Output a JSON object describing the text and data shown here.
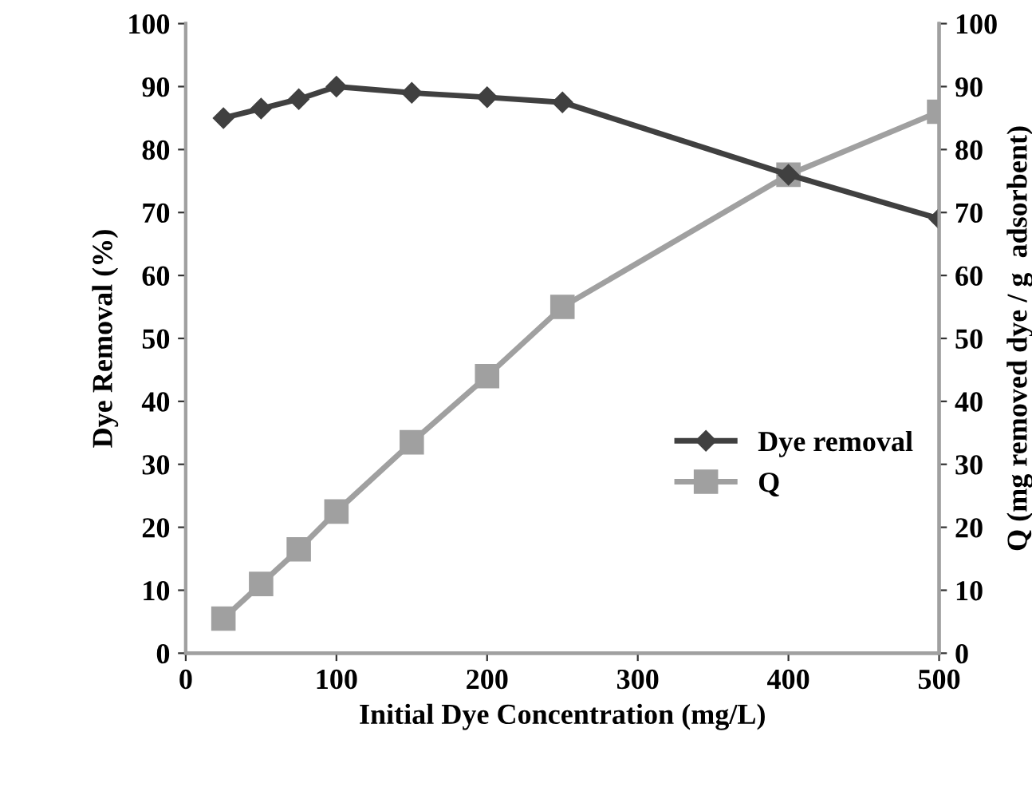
{
  "chart_data": {
    "type": "line",
    "xlabel": "Initial Dye Concentration (mg/L)",
    "ylabel": "Dye Removal (%)",
    "y2label": "Q (mg removed dye / g  adsorbent)",
    "x": [
      25,
      50,
      75,
      100,
      150,
      200,
      250,
      400,
      500
    ],
    "series": [
      {
        "name": "Dye removal",
        "color": "#404040",
        "marker": "diamond",
        "values": [
          85,
          86.5,
          88,
          90,
          89,
          88.3,
          87.5,
          76,
          69
        ]
      },
      {
        "name": "Q",
        "color": "#a0a0a0",
        "marker": "square",
        "axis": "y2",
        "values": [
          5.5,
          11,
          16.5,
          22.5,
          33.5,
          44,
          55,
          76,
          86
        ]
      }
    ],
    "xlim": [
      0,
      500
    ],
    "xticks": [
      0,
      100,
      200,
      300,
      400,
      500
    ],
    "ylim": [
      0,
      100
    ],
    "yticks": [
      0,
      10,
      20,
      30,
      40,
      50,
      60,
      70,
      80,
      90,
      100
    ],
    "y2lim": [
      0,
      100
    ],
    "y2ticks": [
      0,
      10,
      20,
      30,
      40,
      50,
      60,
      70,
      80,
      90,
      100
    ],
    "legend": "right",
    "grid": false
  }
}
